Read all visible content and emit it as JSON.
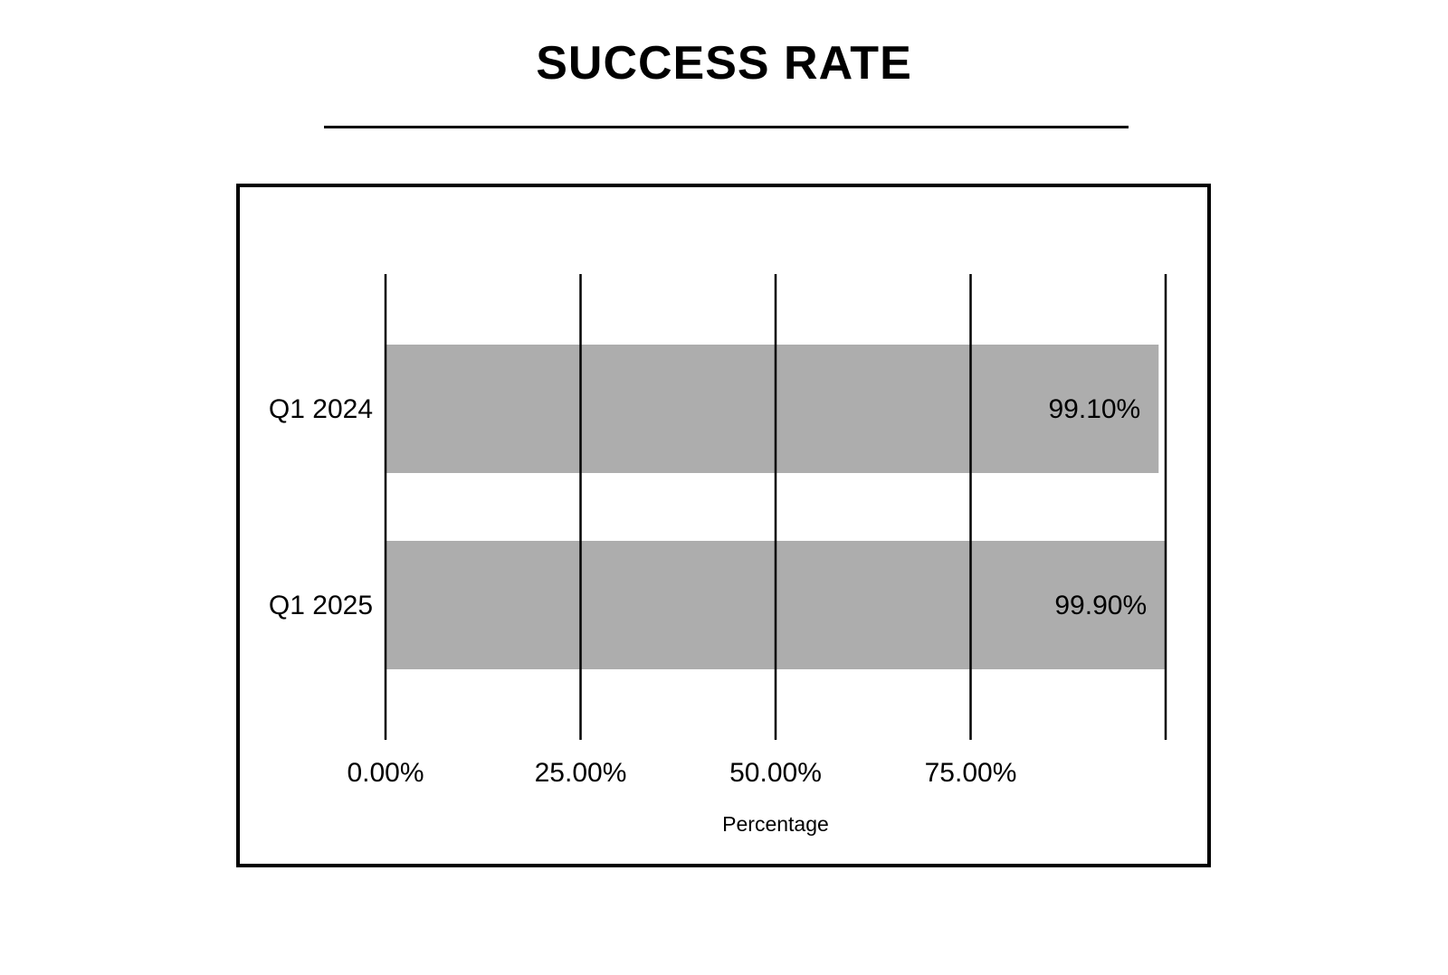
{
  "colors": {
    "bar": "#adadad",
    "gridline": "#000000",
    "text": "#000000",
    "background": "#ffffff"
  },
  "chart_data": {
    "type": "bar",
    "orientation": "horizontal",
    "title": "SUCCESS RATE",
    "xlabel": "Percentage",
    "ylabel": "",
    "categories": [
      "Q1 2024",
      "Q1 2025"
    ],
    "values": [
      99.1,
      99.9
    ],
    "value_labels": [
      "99.10%",
      "99.90%"
    ],
    "xlim": [
      0,
      100
    ],
    "x_ticks": [
      0,
      25,
      50,
      75,
      100
    ],
    "x_tick_labels": [
      "0.00%",
      "25.00%",
      "50.00%",
      "75.00%",
      ""
    ],
    "grid": "vertical",
    "legend": "none"
  }
}
